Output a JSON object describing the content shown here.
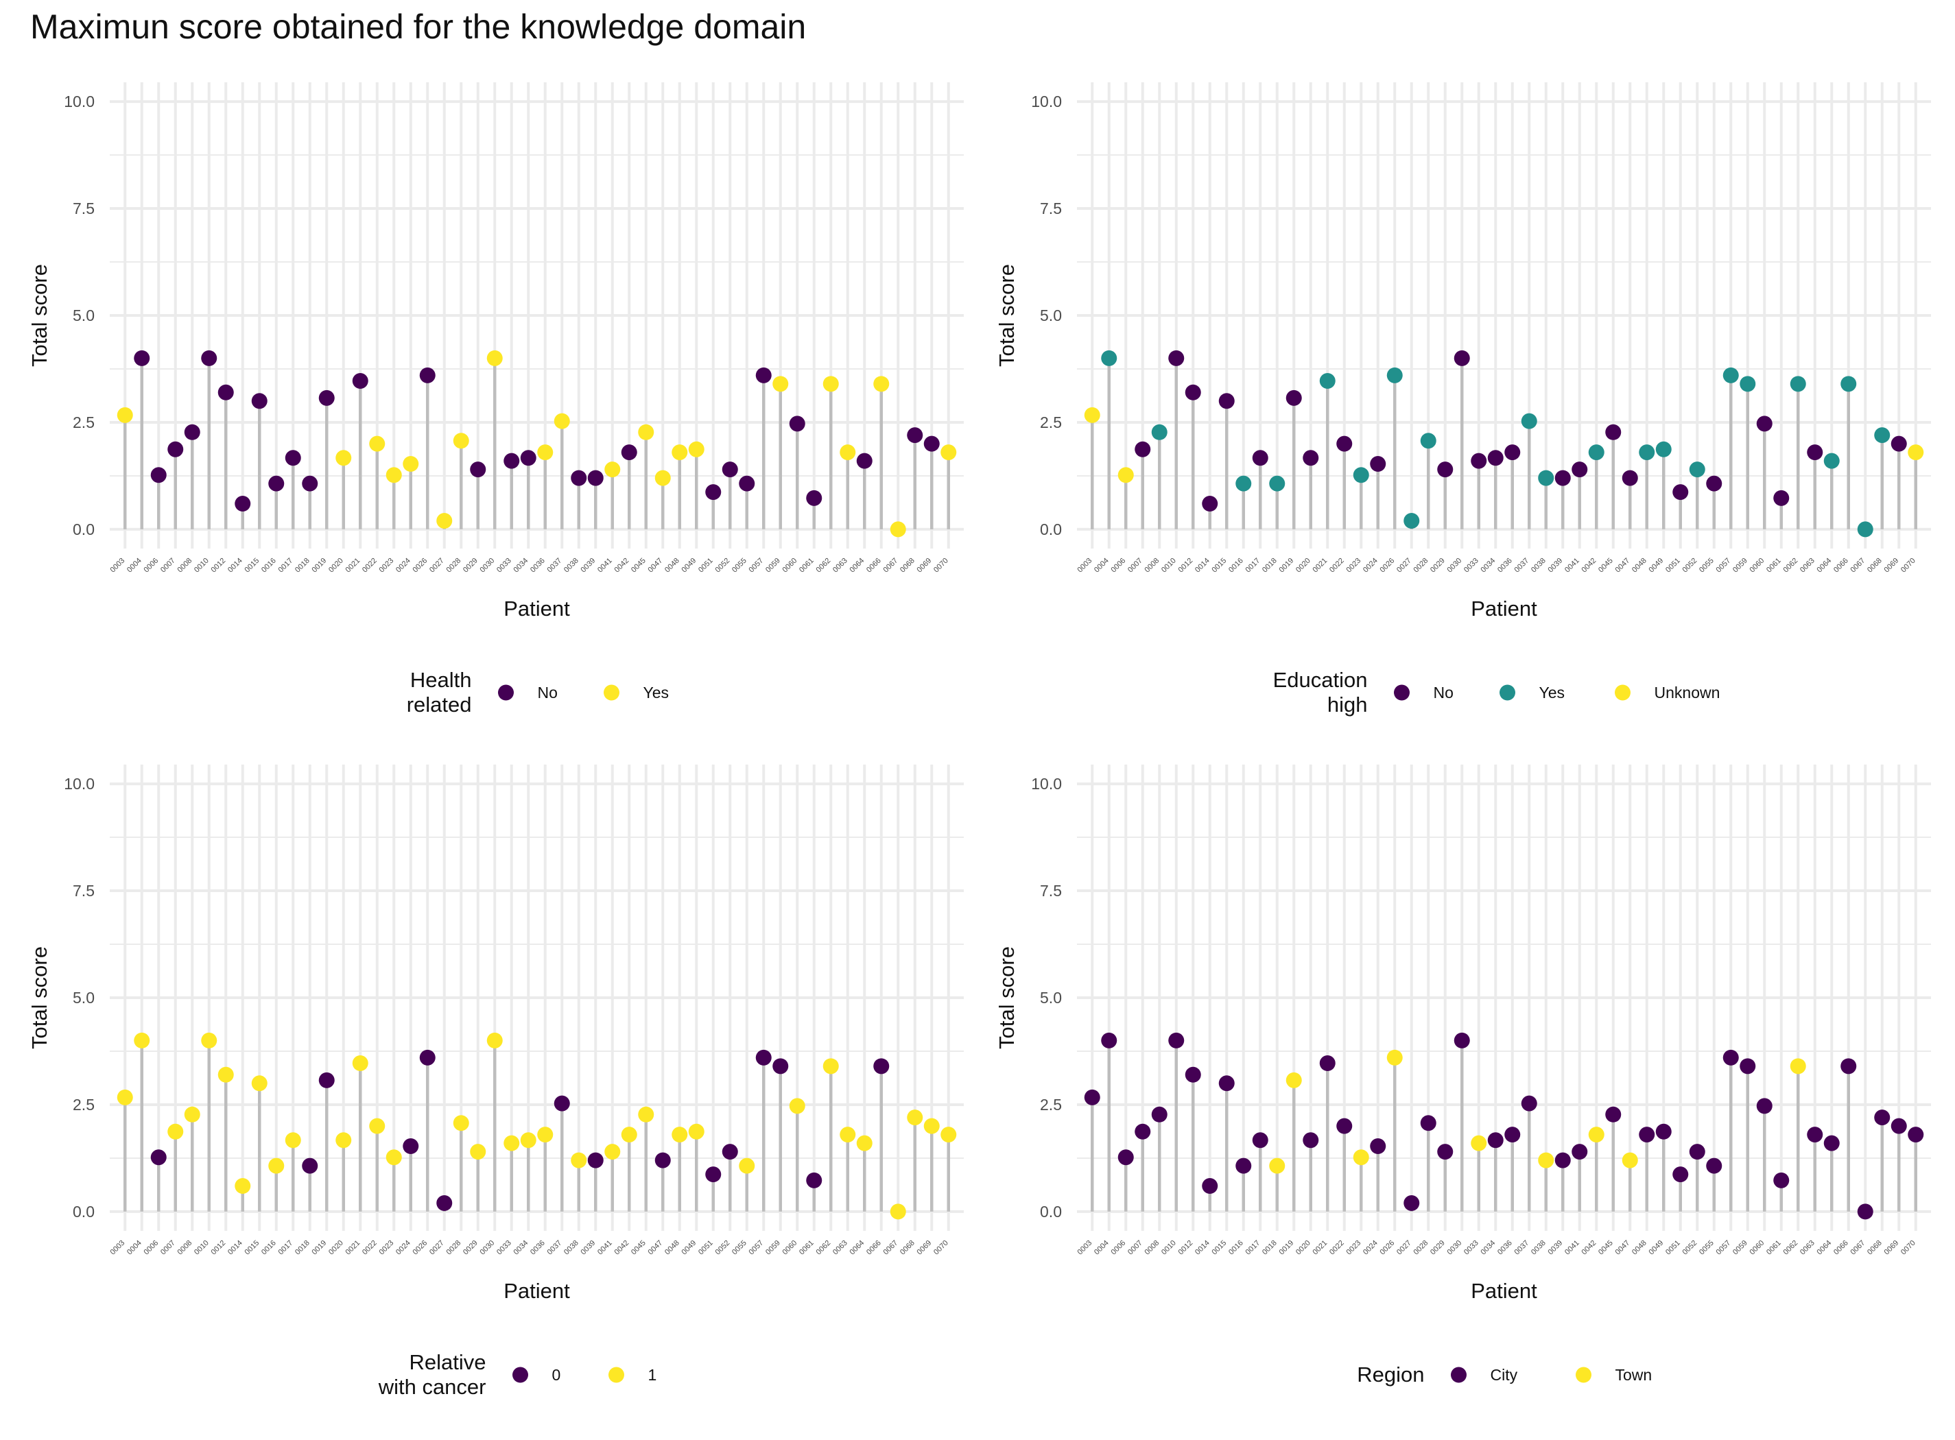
{
  "title": "Maximun score obtained for the knowledge domain",
  "colors": {
    "purple": "#440154",
    "teal": "#21908C",
    "yellow": "#FDE725",
    "stem": "#BDBDBD",
    "grid": "#EBEBEB"
  },
  "chart_data": [
    {
      "type": "lollipop",
      "xlabel": "Patient",
      "ylabel": "Total score",
      "ylim": [
        0,
        10
      ],
      "yticks": [
        "0.0",
        "2.5",
        "5.0",
        "7.5",
        "10.0"
      ],
      "legend": {
        "title": [
          "Health",
          "related"
        ],
        "labels": [
          "No",
          "Yes"
        ],
        "colors": [
          "#440154",
          "#FDE725"
        ]
      },
      "categories": [
        "0003",
        "0004",
        "0006",
        "0007",
        "0008",
        "0010",
        "0012",
        "0014",
        "0015",
        "0016",
        "0017",
        "0018",
        "0019",
        "0020",
        "0021",
        "0022",
        "0023",
        "0024",
        "0026",
        "0027",
        "0028",
        "0029",
        "0030",
        "0033",
        "0034",
        "0036",
        "0037",
        "0038",
        "0039",
        "0041",
        "0042",
        "0045",
        "0047",
        "0048",
        "0049",
        "0051",
        "0052",
        "0055",
        "0057",
        "0059",
        "0060",
        "0061",
        "0062",
        "0063",
        "0064",
        "0066",
        "0067",
        "0068",
        "0069",
        "0070"
      ],
      "values": [
        2.67,
        4,
        1.27,
        1.87,
        2.27,
        4,
        3.2,
        0.6,
        3,
        1.07,
        1.67,
        1.07,
        3.07,
        1.67,
        3.47,
        2,
        1.27,
        1.53,
        3.6,
        0.2,
        2.07,
        1.4,
        4,
        1.6,
        1.67,
        1.8,
        2.53,
        1.2,
        1.2,
        1.4,
        1.8,
        2.27,
        1.2,
        1.8,
        1.87,
        0.87,
        1.4,
        1.07,
        3.6,
        3.4,
        2.47,
        0.73,
        3.4,
        1.8,
        1.6,
        3.4,
        0,
        2.2,
        2,
        1.8
      ],
      "groups": [
        1,
        0,
        0,
        0,
        0,
        0,
        0,
        0,
        0,
        0,
        0,
        0,
        0,
        1,
        0,
        1,
        1,
        1,
        0,
        1,
        1,
        0,
        1,
        0,
        0,
        1,
        1,
        0,
        0,
        1,
        0,
        1,
        1,
        1,
        1,
        0,
        0,
        0,
        0,
        1,
        0,
        0,
        1,
        1,
        0,
        1,
        1,
        0,
        0,
        1
      ]
    },
    {
      "type": "lollipop",
      "xlabel": "Patient",
      "ylabel": "Total score",
      "ylim": [
        0,
        10
      ],
      "yticks": [
        "0.0",
        "2.5",
        "5.0",
        "7.5",
        "10.0"
      ],
      "legend": {
        "title": [
          "Education",
          "high"
        ],
        "labels": [
          "No",
          "Yes",
          "Unknown"
        ],
        "colors": [
          "#440154",
          "#21908C",
          "#FDE725"
        ]
      },
      "categories": [
        "0003",
        "0004",
        "0006",
        "0007",
        "0008",
        "0010",
        "0012",
        "0014",
        "0015",
        "0016",
        "0017",
        "0018",
        "0019",
        "0020",
        "0021",
        "0022",
        "0023",
        "0024",
        "0026",
        "0027",
        "0028",
        "0029",
        "0030",
        "0033",
        "0034",
        "0036",
        "0037",
        "0038",
        "0039",
        "0041",
        "0042",
        "0045",
        "0047",
        "0048",
        "0049",
        "0051",
        "0052",
        "0055",
        "0057",
        "0059",
        "0060",
        "0061",
        "0062",
        "0063",
        "0064",
        "0066",
        "0067",
        "0068",
        "0069",
        "0070"
      ],
      "values": [
        2.67,
        4,
        1.27,
        1.87,
        2.27,
        4,
        3.2,
        0.6,
        3,
        1.07,
        1.67,
        1.07,
        3.07,
        1.67,
        3.47,
        2,
        1.27,
        1.53,
        3.6,
        0.2,
        2.07,
        1.4,
        4,
        1.6,
        1.67,
        1.8,
        2.53,
        1.2,
        1.2,
        1.4,
        1.8,
        2.27,
        1.2,
        1.8,
        1.87,
        0.87,
        1.4,
        1.07,
        3.6,
        3.4,
        2.47,
        0.73,
        3.4,
        1.8,
        1.6,
        3.4,
        0,
        2.2,
        2,
        1.8
      ],
      "groups": [
        2,
        1,
        2,
        0,
        1,
        0,
        0,
        0,
        0,
        1,
        0,
        1,
        0,
        0,
        1,
        0,
        1,
        0,
        1,
        1,
        1,
        0,
        0,
        0,
        0,
        0,
        1,
        1,
        0,
        0,
        1,
        0,
        0,
        1,
        1,
        0,
        1,
        0,
        1,
        1,
        0,
        0,
        1,
        0,
        1,
        1,
        1,
        1,
        0,
        2
      ]
    },
    {
      "type": "lollipop",
      "xlabel": "Patient",
      "ylabel": "Total score",
      "ylim": [
        0,
        10
      ],
      "yticks": [
        "0.0",
        "2.5",
        "5.0",
        "7.5",
        "10.0"
      ],
      "legend": {
        "title": [
          "Relative",
          "with cancer"
        ],
        "labels": [
          "0",
          "1"
        ],
        "colors": [
          "#440154",
          "#FDE725"
        ]
      },
      "categories": [
        "0003",
        "0004",
        "0006",
        "0007",
        "0008",
        "0010",
        "0012",
        "0014",
        "0015",
        "0016",
        "0017",
        "0018",
        "0019",
        "0020",
        "0021",
        "0022",
        "0023",
        "0024",
        "0026",
        "0027",
        "0028",
        "0029",
        "0030",
        "0033",
        "0034",
        "0036",
        "0037",
        "0038",
        "0039",
        "0041",
        "0042",
        "0045",
        "0047",
        "0048",
        "0049",
        "0051",
        "0052",
        "0055",
        "0057",
        "0059",
        "0060",
        "0061",
        "0062",
        "0063",
        "0064",
        "0066",
        "0067",
        "0068",
        "0069",
        "0070"
      ],
      "values": [
        2.67,
        4,
        1.27,
        1.87,
        2.27,
        4,
        3.2,
        0.6,
        3,
        1.07,
        1.67,
        1.07,
        3.07,
        1.67,
        3.47,
        2,
        1.27,
        1.53,
        3.6,
        0.2,
        2.07,
        1.4,
        4,
        1.6,
        1.67,
        1.8,
        2.53,
        1.2,
        1.2,
        1.4,
        1.8,
        2.27,
        1.2,
        1.8,
        1.87,
        0.87,
        1.4,
        1.07,
        3.6,
        3.4,
        2.47,
        0.73,
        3.4,
        1.8,
        1.6,
        3.4,
        0,
        2.2,
        2,
        1.8
      ],
      "groups": [
        1,
        1,
        0,
        1,
        1,
        1,
        1,
        1,
        1,
        1,
        1,
        0,
        0,
        1,
        1,
        1,
        1,
        0,
        0,
        0,
        1,
        1,
        1,
        1,
        1,
        1,
        0,
        1,
        0,
        1,
        1,
        1,
        0,
        1,
        1,
        0,
        0,
        1,
        0,
        0,
        1,
        0,
        1,
        1,
        1,
        0,
        1,
        1,
        1,
        1
      ]
    },
    {
      "type": "lollipop",
      "xlabel": "Patient",
      "ylabel": "Total score",
      "ylim": [
        0,
        10
      ],
      "yticks": [
        "0.0",
        "2.5",
        "5.0",
        "7.5",
        "10.0"
      ],
      "legend": {
        "title": [
          "Region"
        ],
        "labels": [
          "City",
          "Town"
        ],
        "colors": [
          "#440154",
          "#FDE725"
        ]
      },
      "categories": [
        "0003",
        "0004",
        "0006",
        "0007",
        "0008",
        "0010",
        "0012",
        "0014",
        "0015",
        "0016",
        "0017",
        "0018",
        "0019",
        "0020",
        "0021",
        "0022",
        "0023",
        "0024",
        "0026",
        "0027",
        "0028",
        "0029",
        "0030",
        "0033",
        "0034",
        "0036",
        "0037",
        "0038",
        "0039",
        "0041",
        "0042",
        "0045",
        "0047",
        "0048",
        "0049",
        "0051",
        "0052",
        "0055",
        "0057",
        "0059",
        "0060",
        "0061",
        "0062",
        "0063",
        "0064",
        "0066",
        "0067",
        "0068",
        "0069",
        "0070"
      ],
      "values": [
        2.67,
        4,
        1.27,
        1.87,
        2.27,
        4,
        3.2,
        0.6,
        3,
        1.07,
        1.67,
        1.07,
        3.07,
        1.67,
        3.47,
        2,
        1.27,
        1.53,
        3.6,
        0.2,
        2.07,
        1.4,
        4,
        1.6,
        1.67,
        1.8,
        2.53,
        1.2,
        1.2,
        1.4,
        1.8,
        2.27,
        1.2,
        1.8,
        1.87,
        0.87,
        1.4,
        1.07,
        3.6,
        3.4,
        2.47,
        0.73,
        3.4,
        1.8,
        1.6,
        3.4,
        0,
        2.2,
        2,
        1.8
      ],
      "groups": [
        0,
        0,
        0,
        0,
        0,
        0,
        0,
        0,
        0,
        0,
        0,
        1,
        1,
        0,
        0,
        0,
        1,
        0,
        1,
        0,
        0,
        0,
        0,
        1,
        0,
        0,
        0,
        1,
        0,
        0,
        1,
        0,
        1,
        0,
        0,
        0,
        0,
        0,
        0,
        0,
        0,
        0,
        1,
        0,
        0,
        0,
        0,
        0,
        0,
        0
      ]
    }
  ]
}
